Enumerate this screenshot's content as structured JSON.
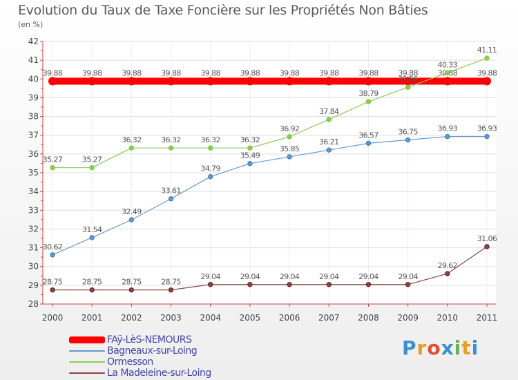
{
  "title": "Evolution du Taux de Taxe Foncière sur les Propriétés Non Bâties",
  "unit": "(en %)",
  "brand": {
    "letters": [
      "P",
      "r",
      "o",
      "x",
      "i",
      "t",
      "i"
    ],
    "colors": [
      "#3a8fd0",
      "#e6a020",
      "#e05030",
      "#3a8fd0",
      "#6ab04c",
      "#e6a020",
      "#3a8fd0"
    ]
  },
  "chart_data": {
    "type": "line",
    "title": "Evolution du Taux de Taxe Foncière sur les Propriétés Non Bâties",
    "xlabel": "",
    "ylabel": "(en %)",
    "ylim": [
      28,
      42
    ],
    "yticks": [
      28,
      29,
      30,
      31,
      32,
      33,
      34,
      35,
      36,
      37,
      38,
      39,
      40,
      41,
      42
    ],
    "categories": [
      "2000",
      "2001",
      "2002",
      "2003",
      "2004",
      "2005",
      "2006",
      "2007",
      "2008",
      "2009",
      "2010",
      "2011"
    ],
    "series": [
      {
        "name": "FAÿ-LèS-NEMOURS",
        "color": "#ff0000",
        "width": 10,
        "values": [
          39.88,
          39.88,
          39.88,
          39.88,
          39.88,
          39.88,
          39.88,
          39.88,
          39.88,
          39.88,
          39.88,
          39.88
        ],
        "labels": [
          "39.88",
          "39.88",
          "39.88",
          "39.88",
          "39.88",
          "39.88",
          "39.88",
          "39.88",
          "39.88",
          "39.88",
          "39.88",
          "39.88"
        ]
      },
      {
        "name": "Bagneaux-sur-Loing",
        "color": "#6699cc",
        "marker": "#3a7ab8",
        "width": 1.2,
        "values": [
          30.62,
          31.54,
          32.49,
          33.61,
          34.79,
          35.49,
          35.85,
          36.21,
          36.57,
          36.75,
          36.93,
          36.93
        ],
        "labels": [
          "30.62",
          "31.54",
          "32.49",
          "33.61",
          "34.79",
          "35.49",
          "35.85",
          "36.21",
          "36.57",
          "36.75",
          "36.93",
          "36.93"
        ]
      },
      {
        "name": "Ormesson",
        "color": "#88cc55",
        "marker": "#77cc33",
        "width": 1.2,
        "values": [
          35.27,
          35.27,
          36.32,
          36.32,
          36.32,
          36.32,
          36.92,
          37.84,
          38.79,
          39.56,
          40.33,
          41.11
        ],
        "labels": [
          "35.27",
          "35.27",
          "36.32",
          "36.32",
          "36.32",
          "36.32",
          "36.92",
          "37.84",
          "38.79",
          "39.56",
          "40.33",
          "41.11"
        ]
      },
      {
        "name": "La Madeleine-sur-Loing",
        "color": "#884444",
        "marker": "#661a1a",
        "width": 1.2,
        "values": [
          28.75,
          28.75,
          28.75,
          28.75,
          29.04,
          29.04,
          29.04,
          29.04,
          29.04,
          29.04,
          29.62,
          31.06
        ],
        "labels": [
          "28.75",
          "28.75",
          "28.75",
          "28.75",
          "29.04",
          "29.04",
          "29.04",
          "29.04",
          "29.04",
          "29.04",
          "29.62",
          "31.06"
        ]
      }
    ]
  }
}
